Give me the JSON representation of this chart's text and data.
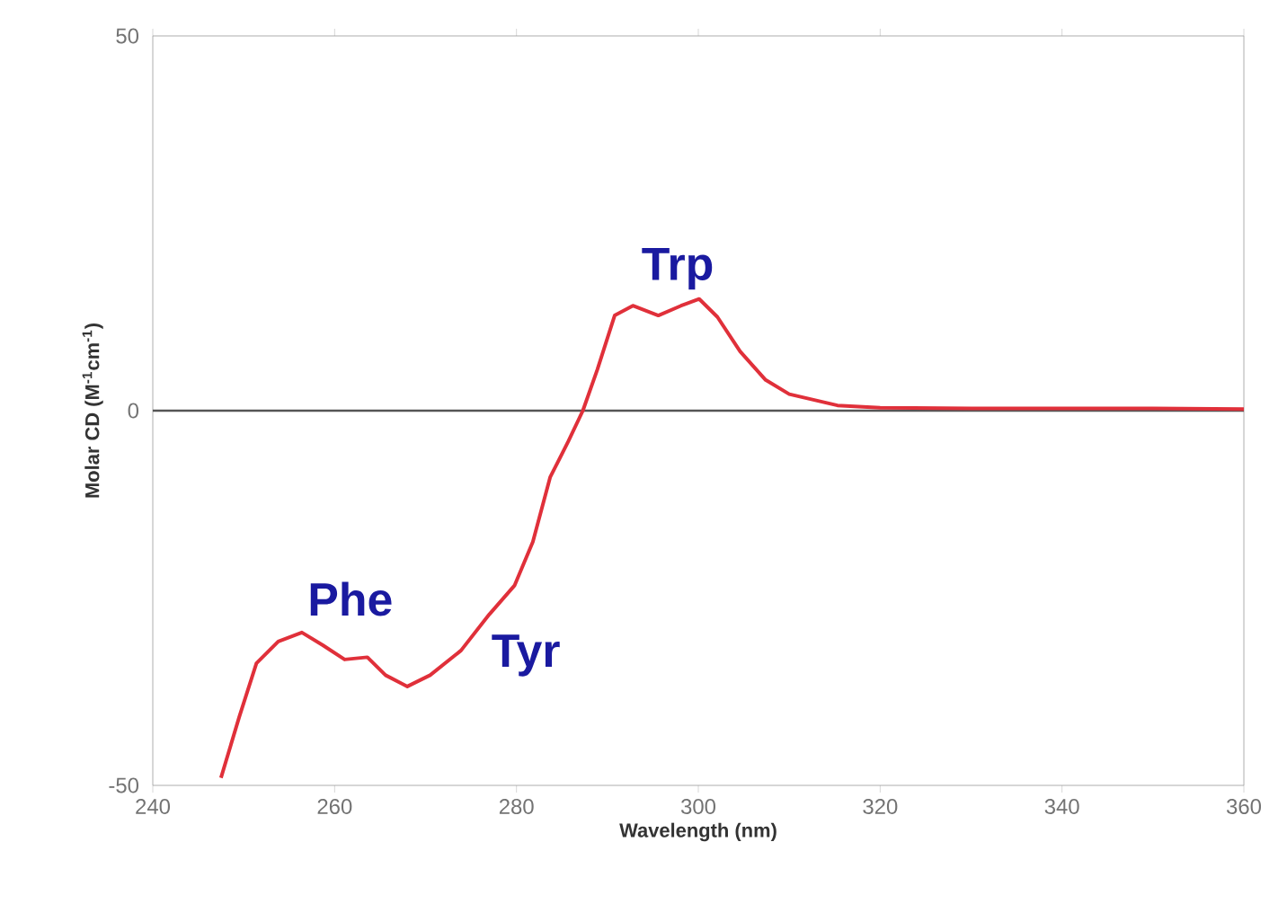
{
  "chart_data": {
    "type": "line",
    "xlabel": "Wavelength (nm)",
    "ylabel": "Molar CD (M$^{-1}$cm$^{-1}$)",
    "xlim": [
      240,
      360
    ],
    "ylim": [
      -50,
      50
    ],
    "xticks": [
      240,
      260,
      280,
      300,
      320,
      340,
      360
    ],
    "yticks": [
      -50,
      0,
      50
    ],
    "grid": false,
    "marker": "none",
    "line_style": "solid",
    "x": [
      247.5,
      249.5,
      251.4,
      253.8,
      256.4,
      258.7,
      261.1,
      263.6,
      265.6,
      268,
      270.5,
      273.9,
      277,
      279.8,
      281.8,
      283.7,
      285.7,
      287.3,
      288.9,
      290.8,
      292.8,
      295.6,
      298.1,
      300.1,
      302.1,
      304.6,
      307.4,
      310,
      315.3,
      320,
      330,
      340,
      350,
      360
    ],
    "series": [
      {
        "color": "#e0303a",
        "values": [
          -49,
          -40.9,
          -33.7,
          -30.8,
          -29.6,
          -31.3,
          -33.2,
          -32.9,
          -35.3,
          -36.8,
          -35.3,
          -32,
          -27.2,
          -23.3,
          -17.5,
          -8.9,
          -4.1,
          0,
          5.5,
          12.7,
          14,
          12.7,
          14,
          14.9,
          12.5,
          7.9,
          4.1,
          2.2,
          0.7,
          0.4,
          0.3,
          0.3,
          0.3,
          0.2
        ]
      }
    ],
    "ref_lines": [
      {
        "axis": "y",
        "value": 0,
        "color": "#555555"
      }
    ],
    "annotations": [
      {
        "text": "Phe",
        "x": 256.4,
        "y": -29.6
      },
      {
        "text": "Tyr",
        "x": 277,
        "y": -27.2
      },
      {
        "text": "Trp",
        "x": 300.1,
        "y": 14.9
      }
    ]
  }
}
